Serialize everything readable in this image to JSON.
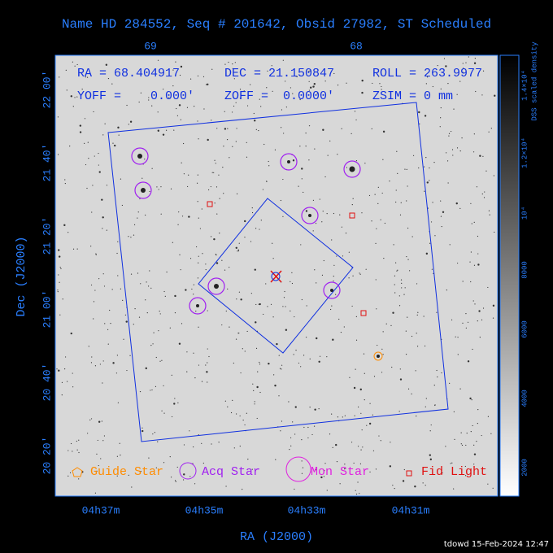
{
  "title": "Name HD 284552, Seq # 201642, Obsid 27982, ST Scheduled",
  "info": [
    "RA = 68.404917",
    "DEC = 21.150847",
    "ROLL = 263.9977",
    "YOFF =    0.000'",
    "ZOFF =  0.0000'",
    "ZSIM = 0 mm"
  ],
  "top_ticks": [
    "69",
    "68"
  ],
  "x_ticks": [
    "04h37m",
    "04h35m",
    "04h33m",
    "04h31m"
  ],
  "y_ticks": [
    "22 00'",
    "21 40'",
    "21 20'",
    "21 00'",
    "20 40'",
    "20 20'"
  ],
  "x_label": "RA (J2000)",
  "y_label": "Dec (J2000)",
  "legend": [
    "Guide Star",
    "Acq Star",
    "Mon Star",
    "Fid Light"
  ],
  "colorbar_label": "DSS scaled density",
  "colorbar_ticks": [
    "2000",
    "4000",
    "6000",
    "8000",
    "10⁴",
    "1.2×10⁴",
    "1.4×10⁴"
  ],
  "footer": "tdowd 15-Feb-2024 12:47"
}
